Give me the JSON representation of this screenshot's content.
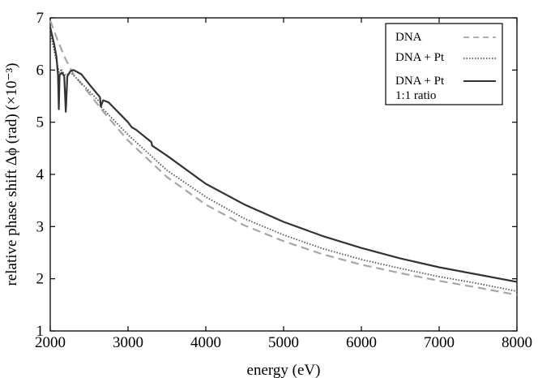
{
  "chart_data": {
    "type": "line",
    "xlabel": "energy (eV)",
    "ylabel": "relative phase shift Δϕ (rad) (×10⁻³)",
    "xlim": [
      2000,
      8000
    ],
    "ylim": [
      1,
      7
    ],
    "xticks": [
      "2000",
      "3000",
      "4000",
      "5000",
      "6000",
      "7000",
      "8000"
    ],
    "yticks": [
      "1",
      "2",
      "3",
      "4",
      "5",
      "6",
      "7"
    ],
    "grid": false,
    "legend_position": "top-right",
    "series": [
      {
        "name": "DNA",
        "style": "dashed",
        "color": "#a6a6a6",
        "points": [
          [
            2000,
            6.95
          ],
          [
            2100,
            6.55
          ],
          [
            2200,
            6.2
          ],
          [
            2300,
            5.92
          ],
          [
            2500,
            5.55
          ],
          [
            2700,
            5.17
          ],
          [
            3000,
            4.65
          ],
          [
            3500,
            3.95
          ],
          [
            4000,
            3.42
          ],
          [
            4500,
            3.02
          ],
          [
            5000,
            2.72
          ],
          [
            5500,
            2.47
          ],
          [
            6000,
            2.27
          ],
          [
            6500,
            2.11
          ],
          [
            7000,
            1.96
          ],
          [
            7500,
            1.83
          ],
          [
            8000,
            1.69
          ]
        ]
      },
      {
        "name": "DNA + Pt",
        "style": "dotted",
        "color": "#555555",
        "points": [
          [
            2000,
            6.72
          ],
          [
            2060,
            6.3
          ],
          [
            2100,
            6.05
          ],
          [
            2120,
            5.9
          ],
          [
            2140,
            6.02
          ],
          [
            2180,
            5.92
          ],
          [
            2200,
            5.9
          ],
          [
            2260,
            5.95
          ],
          [
            2300,
            5.9
          ],
          [
            2500,
            5.6
          ],
          [
            2640,
            5.38
          ],
          [
            2650,
            5.3
          ],
          [
            2700,
            5.22
          ],
          [
            3000,
            4.76
          ],
          [
            3500,
            4.08
          ],
          [
            4000,
            3.57
          ],
          [
            4500,
            3.15
          ],
          [
            5000,
            2.84
          ],
          [
            5500,
            2.58
          ],
          [
            6000,
            2.37
          ],
          [
            6500,
            2.2
          ],
          [
            7000,
            2.04
          ],
          [
            7500,
            1.91
          ],
          [
            8000,
            1.76
          ]
        ]
      },
      {
        "name": "DNA + Pt\n1:1 ratio",
        "style": "solid",
        "color": "#333333",
        "points": [
          [
            2000,
            6.82
          ],
          [
            2050,
            6.5
          ],
          [
            2080,
            6.25
          ],
          [
            2100,
            5.9
          ],
          [
            2110,
            5.25
          ],
          [
            2120,
            5.9
          ],
          [
            2150,
            5.95
          ],
          [
            2180,
            5.88
          ],
          [
            2200,
            5.2
          ],
          [
            2220,
            5.88
          ],
          [
            2260,
            5.98
          ],
          [
            2300,
            6.0
          ],
          [
            2400,
            5.92
          ],
          [
            2500,
            5.73
          ],
          [
            2600,
            5.55
          ],
          [
            2640,
            5.48
          ],
          [
            2650,
            5.3
          ],
          [
            2680,
            5.42
          ],
          [
            2750,
            5.38
          ],
          [
            3000,
            5.0
          ],
          [
            3050,
            4.9
          ],
          [
            3100,
            4.86
          ],
          [
            3300,
            4.62
          ],
          [
            3310,
            4.55
          ],
          [
            3500,
            4.36
          ],
          [
            4000,
            3.82
          ],
          [
            4500,
            3.42
          ],
          [
            5000,
            3.09
          ],
          [
            5500,
            2.82
          ],
          [
            6000,
            2.59
          ],
          [
            6500,
            2.39
          ],
          [
            7000,
            2.22
          ],
          [
            7500,
            2.08
          ],
          [
            8000,
            1.94
          ]
        ]
      }
    ],
    "legend": [
      {
        "label": "DNA",
        "style": "dashed"
      },
      {
        "label": "DNA + Pt",
        "style": "dotted"
      },
      {
        "label": "DNA + Pt",
        "label2": "1:1 ratio",
        "style": "solid"
      }
    ]
  }
}
